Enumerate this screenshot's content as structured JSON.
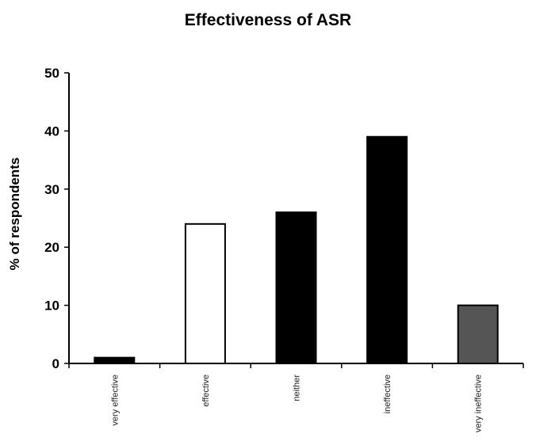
{
  "chart_data": {
    "type": "bar",
    "title": "Effectiveness of ASR",
    "ylabel": "% of respondents",
    "xlabel": "",
    "categories": [
      "very effective",
      "effective",
      "neither",
      "ineffective",
      "very ineffective"
    ],
    "values": [
      1,
      24,
      26,
      39,
      10
    ],
    "ylim": [
      0,
      50
    ],
    "yticks": [
      0,
      10,
      20,
      30,
      40,
      50
    ],
    "bar_colors": [
      "#000000",
      "#ffffff",
      "#000000",
      "#000000",
      "#555555"
    ],
    "grid": false,
    "legend": "none"
  }
}
